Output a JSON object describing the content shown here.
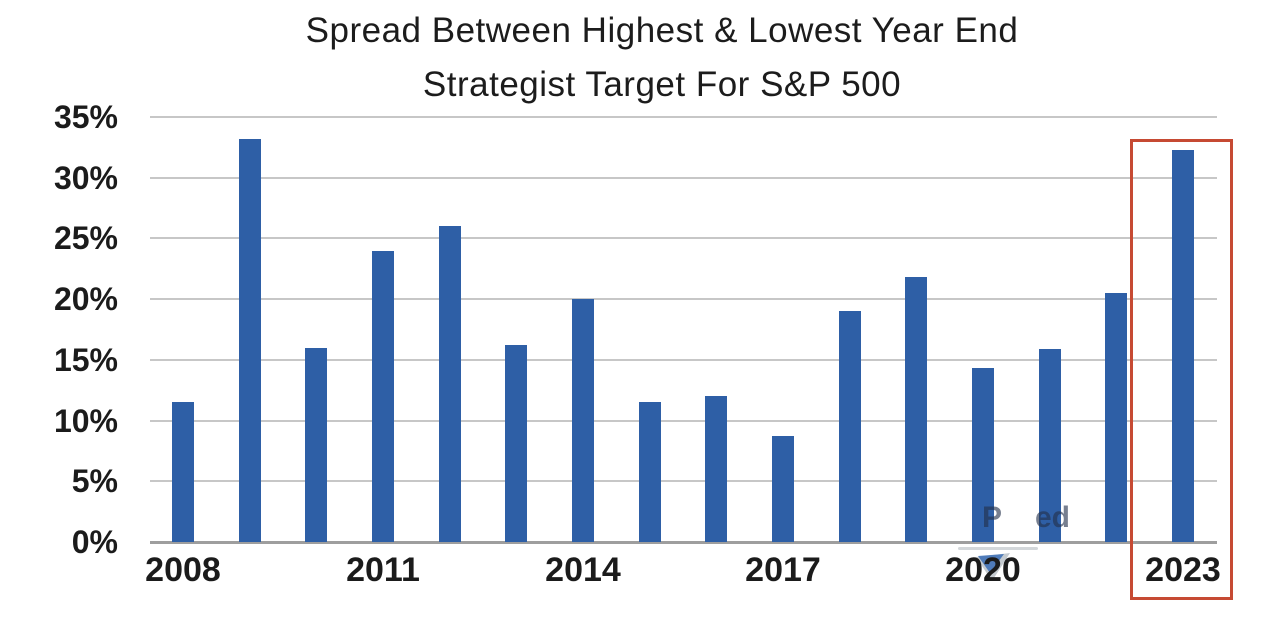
{
  "title": {
    "line1": "Spread Between Highest & Lowest Year End",
    "line2": "Strategist Target For S&P 500"
  },
  "chart_data": {
    "type": "bar",
    "title": "Spread Between Highest & Lowest Year End Strategist Target For S&P 500",
    "categories": [
      "2008",
      "2009",
      "2010",
      "2011",
      "2012",
      "2013",
      "2014",
      "2015",
      "2016",
      "2017",
      "2018",
      "2019",
      "2020",
      "2021",
      "2022",
      "2023"
    ],
    "values": [
      11.5,
      33.2,
      16,
      24,
      26,
      16.2,
      20,
      11.5,
      12,
      8.7,
      19,
      21.8,
      14.3,
      15.9,
      20.5,
      32.3
    ],
    "xlabel": "",
    "ylabel": "",
    "ylim": [
      0,
      35
    ],
    "y_tick_values": [
      35,
      30,
      25,
      20,
      15,
      10,
      5,
      0
    ],
    "y_tick_labels": [
      "35%",
      "30%",
      "25%",
      "20%",
      "15%",
      "10%",
      "5%",
      "0%"
    ],
    "x_tick_labels": [
      "2008",
      "2011",
      "2014",
      "2017",
      "2020",
      "2023"
    ],
    "x_tick_indices": [
      0,
      3,
      6,
      9,
      12,
      15
    ],
    "grid": true,
    "legend": false,
    "highlighted_category": "2023"
  },
  "annotations": {
    "watermark_fragment_1": "P",
    "watermark_fragment_2": "ed"
  },
  "colors": {
    "background": "#ffffff",
    "bar": "#2e5fa6",
    "gridline": "#c7c7c7",
    "baseline": "#9e9e9e",
    "text": "#1b1b1b",
    "highlight_box": "#c64a33",
    "watermark": "#23304a",
    "smudge_blue": "#3a6db5"
  }
}
